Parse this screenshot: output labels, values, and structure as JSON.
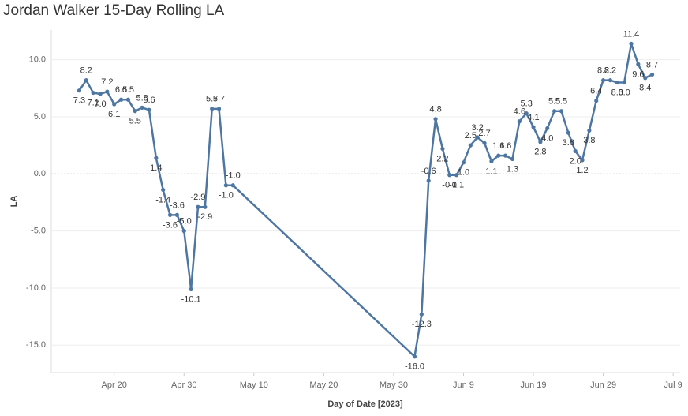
{
  "chart_data": {
    "type": "line",
    "title": "Jordan Walker 15-Day Rolling LA",
    "xlabel": "Day of Date [2023]",
    "ylabel": "LA",
    "x": [
      "2023-04-15",
      "2023-04-16",
      "2023-04-17",
      "2023-04-18",
      "2023-04-19",
      "2023-04-20",
      "2023-04-21",
      "2023-04-22",
      "2023-04-23",
      "2023-04-24",
      "2023-04-25",
      "2023-04-26",
      "2023-04-27",
      "2023-04-28",
      "2023-04-29",
      "2023-04-30",
      "2023-05-01",
      "2023-05-02",
      "2023-05-03",
      "2023-05-04",
      "2023-05-05",
      "2023-05-06",
      "2023-05-07",
      "2023-06-02",
      "2023-06-03",
      "2023-06-04",
      "2023-06-05",
      "2023-06-06",
      "2023-06-07",
      "2023-06-08",
      "2023-06-09",
      "2023-06-10",
      "2023-06-11",
      "2023-06-12",
      "2023-06-13",
      "2023-06-14",
      "2023-06-15",
      "2023-06-16",
      "2023-06-17",
      "2023-06-18",
      "2023-06-19",
      "2023-06-20",
      "2023-06-21",
      "2023-06-22",
      "2023-06-23",
      "2023-06-24",
      "2023-06-25",
      "2023-06-26",
      "2023-06-27",
      "2023-06-28",
      "2023-06-29",
      "2023-06-30",
      "2023-07-01",
      "2023-07-02",
      "2023-07-03",
      "2023-07-04",
      "2023-07-05",
      "2023-07-06"
    ],
    "series": [
      {
        "name": "LA",
        "color": "#4e76a2",
        "values": [
          7.3,
          8.2,
          7.1,
          7.0,
          7.2,
          6.1,
          6.5,
          6.5,
          5.5,
          5.8,
          5.6,
          1.4,
          -1.4,
          -3.6,
          -3.6,
          -5.0,
          -10.1,
          -2.9,
          -2.9,
          5.7,
          5.7,
          -1.0,
          -1.0,
          -16.0,
          -12.3,
          -0.6,
          4.8,
          2.2,
          -0.1,
          -0.1,
          1.0,
          2.5,
          3.2,
          2.7,
          1.1,
          1.6,
          1.6,
          1.3,
          4.6,
          5.3,
          4.1,
          2.8,
          4.0,
          5.5,
          5.5,
          3.6,
          2.0,
          1.2,
          3.8,
          6.4,
          8.2,
          8.2,
          8.0,
          8.0,
          11.4,
          9.6,
          8.4,
          8.7
        ],
        "value_labels": [
          "7.3",
          "8.2",
          "7.1",
          "7.0",
          "7.2",
          "6.1",
          "6.5",
          "6.5",
          "5.5",
          "5.8",
          "5.6",
          "1.4",
          "-1.4",
          "-3.6",
          "-3.6",
          "-5.0",
          "-10.1",
          "-2.9",
          "-2.9",
          "5.7",
          "5.7",
          "-1.0",
          "-1.0",
          "-16.0",
          "-12.3",
          "-0.6",
          "4.8",
          "2.2",
          "-0.1",
          "-0.1",
          "1.0",
          "2.5",
          "3.2",
          "2.7",
          "1.1",
          "1.6",
          "1.6",
          "1.3",
          "4.6",
          "5.3",
          "4.1",
          "2.8",
          "4.0",
          "5.5",
          "5.5",
          "3.6",
          "2.0",
          "1.2",
          "3.8",
          "6.4",
          "8.2",
          "8.2",
          "8.0",
          "8.0",
          "11.4",
          "9.6",
          "8.4",
          "8.7"
        ]
      }
    ],
    "xlim": [
      "2023-04-11",
      "2023-07-10"
    ],
    "xticks": [
      {
        "value": "2023-04-20",
        "label": "Apr 20"
      },
      {
        "value": "2023-04-30",
        "label": "Apr 30"
      },
      {
        "value": "2023-05-10",
        "label": "May 10"
      },
      {
        "value": "2023-05-20",
        "label": "May 20"
      },
      {
        "value": "2023-05-30",
        "label": "May 30"
      },
      {
        "value": "2023-06-09",
        "label": "Jun 9"
      },
      {
        "value": "2023-06-19",
        "label": "Jun 19"
      },
      {
        "value": "2023-06-29",
        "label": "Jun 29"
      },
      {
        "value": "2023-07-09",
        "label": "Jul 9"
      }
    ],
    "ylim": [
      -17.4,
      12.6
    ],
    "yticks": [
      {
        "value": -15,
        "label": "-15.0"
      },
      {
        "value": -10,
        "label": "-10.0"
      },
      {
        "value": -5,
        "label": "-5.0"
      },
      {
        "value": 0,
        "label": "0.0"
      },
      {
        "value": 5,
        "label": "5.0"
      },
      {
        "value": 10,
        "label": "10.0"
      }
    ],
    "grid": true
  }
}
